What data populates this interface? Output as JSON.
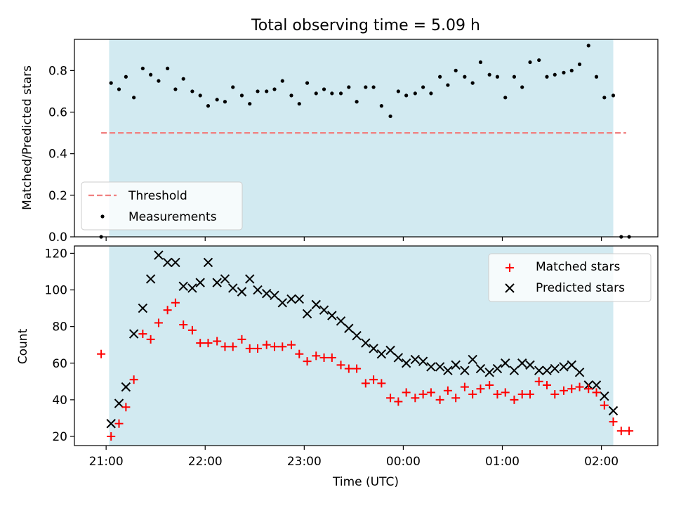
{
  "chart_data": [
    {
      "type": "scatter",
      "title": "Total observing time = 5.09 h",
      "ylabel": "Matched/Predicted stars",
      "xlim_hours_after_2100": [
        -0.32,
        5.57
      ],
      "ylim": [
        0,
        0.95
      ],
      "y_ticks": [
        "0.0",
        "0.2",
        "0.4",
        "0.6",
        "0.8"
      ],
      "observing_window_hours_after_2100": [
        0.03,
        5.12
      ],
      "legend_position": "lower-left",
      "series": [
        {
          "name": "Threshold",
          "style": "dashed-line",
          "color": "#f08080",
          "x": [
            -0.05,
            5.25
          ],
          "y": [
            0.5,
            0.5
          ]
        },
        {
          "name": "Measurements",
          "style": "dot",
          "color": "#000000",
          "x": [
            -0.05,
            0.05,
            0.13,
            0.2,
            0.28,
            0.37,
            0.45,
            0.53,
            0.62,
            0.7,
            0.78,
            0.87,
            0.95,
            1.03,
            1.12,
            1.2,
            1.28,
            1.37,
            1.45,
            1.53,
            1.62,
            1.7,
            1.78,
            1.87,
            1.95,
            2.03,
            2.12,
            2.2,
            2.28,
            2.37,
            2.45,
            2.53,
            2.62,
            2.7,
            2.78,
            2.87,
            2.95,
            3.03,
            3.12,
            3.2,
            3.28,
            3.37,
            3.45,
            3.53,
            3.62,
            3.7,
            3.78,
            3.87,
            3.95,
            4.03,
            4.12,
            4.2,
            4.28,
            4.37,
            4.45,
            4.53,
            4.62,
            4.7,
            4.78,
            4.87,
            4.95,
            5.03,
            5.12,
            5.2,
            5.28
          ],
          "y": [
            0.0,
            0.74,
            0.71,
            0.77,
            0.67,
            0.81,
            0.78,
            0.75,
            0.81,
            0.71,
            0.76,
            0.7,
            0.68,
            0.63,
            0.66,
            0.65,
            0.72,
            0.68,
            0.64,
            0.7,
            0.7,
            0.71,
            0.75,
            0.68,
            0.64,
            0.74,
            0.69,
            0.71,
            0.69,
            0.69,
            0.72,
            0.65,
            0.72,
            0.72,
            0.63,
            0.58,
            0.7,
            0.68,
            0.69,
            0.72,
            0.69,
            0.77,
            0.73,
            0.8,
            0.77,
            0.74,
            0.84,
            0.78,
            0.77,
            0.67,
            0.77,
            0.72,
            0.84,
            0.85,
            0.77,
            0.78,
            0.79,
            0.8,
            0.83,
            0.92,
            0.77,
            0.67,
            0.68,
            0.0,
            0.0
          ]
        }
      ]
    },
    {
      "type": "scatter",
      "xlabel": "Time (UTC)",
      "ylabel": "Count",
      "xlim_hours_after_2100": [
        -0.32,
        5.57
      ],
      "x_ticks": [
        "21:00",
        "22:00",
        "23:00",
        "00:00",
        "01:00",
        "02:00"
      ],
      "ylim": [
        15,
        124
      ],
      "y_ticks": [
        "20",
        "40",
        "60",
        "80",
        "100",
        "120"
      ],
      "observing_window_hours_after_2100": [
        0.03,
        5.12
      ],
      "legend_position": "upper-right",
      "series": [
        {
          "name": "Matched stars",
          "marker": "plus",
          "color": "#ff0000",
          "x": [
            -0.05,
            0.05,
            0.13,
            0.2,
            0.28,
            0.37,
            0.45,
            0.53,
            0.62,
            0.7,
            0.78,
            0.87,
            0.95,
            1.03,
            1.12,
            1.2,
            1.28,
            1.37,
            1.45,
            1.53,
            1.62,
            1.7,
            1.78,
            1.87,
            1.95,
            2.03,
            2.12,
            2.2,
            2.28,
            2.37,
            2.45,
            2.53,
            2.62,
            2.7,
            2.78,
            2.87,
            2.95,
            3.03,
            3.12,
            3.2,
            3.28,
            3.37,
            3.45,
            3.53,
            3.62,
            3.7,
            3.78,
            3.87,
            3.95,
            4.03,
            4.12,
            4.2,
            4.28,
            4.37,
            4.45,
            4.53,
            4.62,
            4.7,
            4.78,
            4.87,
            4.95,
            5.03,
            5.12,
            5.2,
            5.28
          ],
          "y": [
            65,
            20,
            27,
            36,
            51,
            76,
            73,
            82,
            89,
            93,
            81,
            78,
            71,
            71,
            72,
            69,
            69,
            73,
            68,
            68,
            70,
            69,
            69,
            70,
            65,
            61,
            64,
            63,
            63,
            59,
            57,
            57,
            49,
            51,
            49,
            41,
            39,
            44,
            41,
            43,
            44,
            40,
            45,
            41,
            47,
            43,
            46,
            48,
            43,
            44,
            40,
            43,
            43,
            50,
            48,
            43,
            45,
            46,
            47,
            46,
            44,
            37,
            28,
            23,
            23
          ]
        },
        {
          "name": "Predicted stars",
          "marker": "x",
          "color": "#000000",
          "x": [
            0.05,
            0.13,
            0.2,
            0.28,
            0.37,
            0.45,
            0.53,
            0.62,
            0.7,
            0.78,
            0.87,
            0.95,
            1.03,
            1.12,
            1.2,
            1.28,
            1.37,
            1.45,
            1.53,
            1.62,
            1.7,
            1.78,
            1.87,
            1.95,
            2.03,
            2.12,
            2.2,
            2.28,
            2.37,
            2.45,
            2.53,
            2.62,
            2.7,
            2.78,
            2.87,
            2.95,
            3.03,
            3.12,
            3.2,
            3.28,
            3.37,
            3.45,
            3.53,
            3.62,
            3.7,
            3.78,
            3.87,
            3.95,
            4.03,
            4.12,
            4.2,
            4.28,
            4.37,
            4.45,
            4.53,
            4.62,
            4.7,
            4.78,
            4.87,
            4.95,
            5.03,
            5.12
          ],
          "y": [
            27,
            38,
            47,
            76,
            90,
            106,
            119,
            115,
            115,
            102,
            101,
            104,
            115,
            104,
            106,
            101,
            99,
            106,
            100,
            98,
            97,
            93,
            95,
            95,
            87,
            92,
            89,
            86,
            83,
            79,
            75,
            71,
            68,
            65,
            67,
            63,
            60,
            62,
            61,
            58,
            58,
            56,
            59,
            56,
            62,
            57,
            55,
            57,
            60,
            56,
            60,
            59,
            56,
            56,
            57,
            58,
            59,
            55,
            48,
            48,
            42,
            34
          ]
        }
      ]
    }
  ]
}
